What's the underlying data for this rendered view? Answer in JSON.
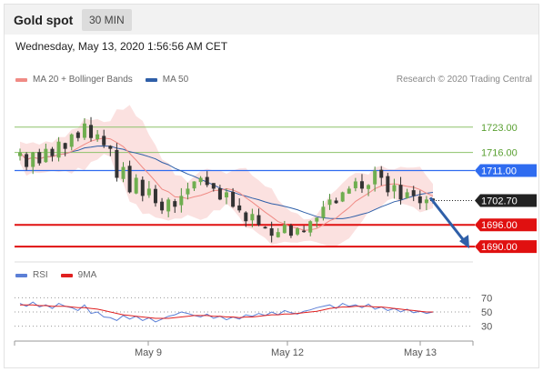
{
  "header": {
    "title": "Gold spot",
    "timeframe": "30 MIN"
  },
  "datetime": "Wednesday, May 13, 2020 1:56:56 AM CET",
  "legend": {
    "items": [
      {
        "label": "MA 20 + Bollinger Bands",
        "color": "#f08b85"
      },
      {
        "label": "MA 50",
        "color": "#2f5fa8"
      }
    ],
    "attribution": "Research © 2020 Trading Central"
  },
  "rsi_legend": {
    "items": [
      {
        "label": "RSI",
        "color": "#5b7fd6"
      },
      {
        "label": "9MA",
        "color": "#e02020"
      }
    ]
  },
  "chart_data": {
    "type": "candlestick",
    "ylim": [
      1686,
      1733
    ],
    "x_labels": [
      "May 9",
      "May 12",
      "May 13"
    ],
    "levels": [
      {
        "value": 1723.0,
        "label": "1723.00",
        "color": "#8dc26a",
        "style": "thin-green"
      },
      {
        "value": 1716.0,
        "label": "1716.00",
        "color": "#8dc26a",
        "style": "thin-green"
      },
      {
        "value": 1711.0,
        "label": "1711.00",
        "color": "#2f6cf0",
        "style": "blue-tag"
      },
      {
        "value": 1702.7,
        "label": "1702.70",
        "color": "#222222",
        "style": "current-tag"
      },
      {
        "value": 1696.0,
        "label": "1696.00",
        "color": "#e01010",
        "style": "red-tag"
      },
      {
        "value": 1690.0,
        "label": "1690.00",
        "color": "#e01010",
        "style": "red-tag"
      }
    ],
    "forecast_arrow": {
      "from": 1703.5,
      "to": 1690.0
    },
    "price_path": [
      1716,
      1712,
      1716,
      1713,
      1717,
      1715,
      1719,
      1717,
      1721,
      1720,
      1724,
      1720,
      1721,
      1718,
      1717,
      1709,
      1712,
      1705,
      1709,
      1704,
      1706,
      1702,
      1700,
      1703,
      1701,
      1704,
      1706,
      1708,
      1709,
      1707,
      1706,
      1703,
      1705,
      1701,
      1700,
      1697,
      1699,
      1696,
      1695,
      1693,
      1694,
      1696,
      1693,
      1695,
      1694,
      1697,
      1698,
      1701,
      1703,
      1702,
      1705,
      1706,
      1708,
      1706,
      1707,
      1711,
      1709,
      1705,
      1707,
      1703,
      1705,
      1704,
      1702,
      1703,
      1702.7
    ],
    "rsi": {
      "ticks": [
        70,
        50,
        30
      ],
      "ylim": [
        18,
        82
      ],
      "rsi_values": [
        62,
        58,
        64,
        57,
        60,
        55,
        62,
        58,
        56,
        52,
        60,
        48,
        50,
        43,
        42,
        38,
        45,
        40,
        44,
        38,
        42,
        36,
        40,
        44,
        46,
        50,
        48,
        45,
        43,
        47,
        41,
        44,
        39,
        43,
        40,
        46,
        44,
        48,
        45,
        50,
        46,
        52,
        49,
        47,
        51,
        53,
        56,
        58,
        60,
        55,
        62,
        58,
        60,
        56,
        61,
        54,
        57,
        52,
        55,
        50,
        54,
        49,
        51,
        48,
        50
      ],
      "ma_values": [
        60,
        60,
        60,
        59,
        59,
        58,
        58,
        58,
        57,
        56,
        56,
        55,
        54,
        52,
        50,
        48,
        46,
        45,
        44,
        43,
        42,
        41,
        41,
        41,
        42,
        43,
        44,
        45,
        45,
        45,
        44,
        44,
        43,
        43,
        42,
        43,
        43,
        44,
        45,
        46,
        46,
        47,
        47,
        48,
        49,
        50,
        51,
        53,
        55,
        56,
        57,
        57,
        58,
        58,
        58,
        57,
        57,
        56,
        55,
        54,
        53,
        52,
        51,
        50,
        50
      ]
    }
  }
}
